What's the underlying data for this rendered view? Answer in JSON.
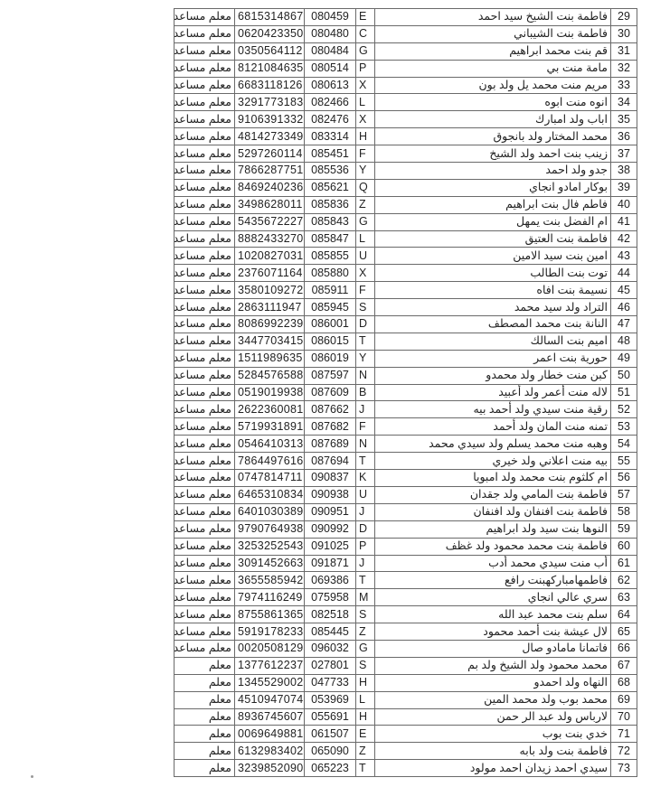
{
  "rows": [
    {
      "num": "29",
      "name": "فاطمة بنت الشيخ سيد احمد",
      "letter": "E",
      "code": "080459",
      "phone": "6815314867",
      "role": "معلم مساعد"
    },
    {
      "num": "30",
      "name": "فاطمة بنت الشيباني",
      "letter": "C",
      "code": "080480",
      "phone": "0620423350",
      "role": "معلم مساعد"
    },
    {
      "num": "31",
      "name": "قم بنت محمد ابراهيم",
      "letter": "G",
      "code": "080484",
      "phone": "0350564112",
      "role": "معلم مساعد"
    },
    {
      "num": "32",
      "name": "مامة منت بي",
      "letter": "P",
      "code": "080514",
      "phone": "8121084635",
      "role": "معلم مساعد"
    },
    {
      "num": "33",
      "name": "مريم منت محمد يل ولد بون",
      "letter": "X",
      "code": "080613",
      "phone": "6683118126",
      "role": "معلم مساعد"
    },
    {
      "num": "34",
      "name": "انوه منت ابوه",
      "letter": "L",
      "code": "082466",
      "phone": "3291773183",
      "role": "معلم مساعد"
    },
    {
      "num": "35",
      "name": "اباب ولد امبارك",
      "letter": "X",
      "code": "082476",
      "phone": "9106391332",
      "role": "معلم مساعد"
    },
    {
      "num": "36",
      "name": "محمد المختار ولد بانجوق",
      "letter": "H",
      "code": "083314",
      "phone": "4814273349",
      "role": "معلم مساعد"
    },
    {
      "num": "37",
      "name": "زينب بنت احمد ولد الشيخ",
      "letter": "F",
      "code": "085451",
      "phone": "5297260114",
      "role": "معلم مساعد"
    },
    {
      "num": "38",
      "name": "جدو ولد احمد",
      "letter": "Y",
      "code": "085536",
      "phone": "7866287751",
      "role": "معلم مساعد"
    },
    {
      "num": "39",
      "name": "بوكار امادو انجاي",
      "letter": "Q",
      "code": "085621",
      "phone": "8469240236",
      "role": "معلم مساعد"
    },
    {
      "num": "40",
      "name": "فاطم فال بنت ابراهيم",
      "letter": "Z",
      "code": "085836",
      "phone": "3498628011",
      "role": "معلم مساعد"
    },
    {
      "num": "41",
      "name": "ام الفضل بنت يمهل",
      "letter": "G",
      "code": "085843",
      "phone": "5435672227",
      "role": "معلم مساعد"
    },
    {
      "num": "42",
      "name": "فاطمة بنت العتيق",
      "letter": "L",
      "code": "085847",
      "phone": "8882433270",
      "role": "معلم مساعد"
    },
    {
      "num": "43",
      "name": "امين بنت سيد الامين",
      "letter": "U",
      "code": "085855",
      "phone": "1020827031",
      "role": "معلم مساعد"
    },
    {
      "num": "44",
      "name": "توت بنت الطالب",
      "letter": "X",
      "code": "085880",
      "phone": "2376071164",
      "role": "معلم مساعد"
    },
    {
      "num": "45",
      "name": "نسيمة بنت افاه",
      "letter": "F",
      "code": "085911",
      "phone": "3580109272",
      "role": "معلم مساعد"
    },
    {
      "num": "46",
      "name": "التراد ولد سيد محمد",
      "letter": "S",
      "code": "085945",
      "phone": "2863111947",
      "role": "معلم مساعد"
    },
    {
      "num": "47",
      "name": "النانة بنت محمد المصطف",
      "letter": "D",
      "code": "086001",
      "phone": "8086992239",
      "role": "معلم مساعد"
    },
    {
      "num": "48",
      "name": "اميم بنت السالك",
      "letter": "T",
      "code": "086015",
      "phone": "3447703415",
      "role": "معلم مساعد"
    },
    {
      "num": "49",
      "name": "حورية بنت اعمر",
      "letter": "Y",
      "code": "086019",
      "phone": "1511989635",
      "role": "معلم مساعد"
    },
    {
      "num": "50",
      "name": "كبن منت خطار ولد محمدو",
      "letter": "N",
      "code": "087597",
      "phone": "5284576588",
      "role": "معلم مساعد"
    },
    {
      "num": "51",
      "name": "لاله منت أعمر ولد أعبيد",
      "letter": "B",
      "code": "087609",
      "phone": "0519019938",
      "role": "معلم مساعد"
    },
    {
      "num": "52",
      "name": "رقية منت سيدي ولد أحمد بيه",
      "letter": "J",
      "code": "087662",
      "phone": "2622360081",
      "role": "معلم مساعد"
    },
    {
      "num": "53",
      "name": "تمنه منت المان ولد أحمد",
      "letter": "F",
      "code": "087682",
      "phone": "5719931891",
      "role": "معلم مساعد"
    },
    {
      "num": "54",
      "name": "وهبه منت محمد يسلم ولد سيدي محمد",
      "letter": "N",
      "code": "087689",
      "phone": "0546410313",
      "role": "معلم مساعد"
    },
    {
      "num": "55",
      "name": "بيه منت اعلاني ولد خيري",
      "letter": "T",
      "code": "087694",
      "phone": "7864497616",
      "role": "معلم مساعد"
    },
    {
      "num": "56",
      "name": "ام كلثوم بنت محمد ولد امبويا",
      "letter": "K",
      "code": "090837",
      "phone": "0747814711",
      "role": "معلم مساعد"
    },
    {
      "num": "57",
      "name": "فاطمة بنت المامي ولد جقدان",
      "letter": "U",
      "code": "090938",
      "phone": "6465310834",
      "role": "معلم مساعد"
    },
    {
      "num": "58",
      "name": "فاطمة بنت افنفان ولد افنفان",
      "letter": "J",
      "code": "090951",
      "phone": "6401030389",
      "role": "معلم مساعد"
    },
    {
      "num": "59",
      "name": "النوها بنت سيد ولد ابراهيم",
      "letter": "D",
      "code": "090992",
      "phone": "9790764938",
      "role": "معلم مساعد"
    },
    {
      "num": "60",
      "name": "فاطمة بنت محمد محمود ولد غظف",
      "letter": "P",
      "code": "091025",
      "phone": "3253252543",
      "role": "معلم مساعد"
    },
    {
      "num": "61",
      "name": "أب منت سيدي محمد أدب",
      "letter": "J",
      "code": "091871",
      "phone": "3091452663",
      "role": "معلم مساعد"
    },
    {
      "num": "62",
      "name": "فاطمهامباركهبنت رافع",
      "letter": "T",
      "code": "069386",
      "phone": "3655585942",
      "role": "معلم مساعد"
    },
    {
      "num": "63",
      "name": "سري عالي انجاي",
      "letter": "M",
      "code": "075958",
      "phone": "7974116249",
      "role": "معلم مساعد"
    },
    {
      "num": "64",
      "name": "سلم بنت محمد عبد الله",
      "letter": "S",
      "code": "082518",
      "phone": "8755861365",
      "role": "معلم مساعد"
    },
    {
      "num": "65",
      "name": "لال عيشة بنت أحمد محمود",
      "letter": "Z",
      "code": "085445",
      "phone": "5919178233",
      "role": "معلم مساعد"
    },
    {
      "num": "66",
      "name": "فاتمانا مامادو صال",
      "letter": "G",
      "code": "096032",
      "phone": "0020508129",
      "role": "معلم مساعد"
    },
    {
      "num": "67",
      "name": "محمد محمود ولد الشيخ ولد بم",
      "letter": "S",
      "code": "027801",
      "phone": "1377612237",
      "role": "معلم"
    },
    {
      "num": "68",
      "name": "النهاه ولد احمدو",
      "letter": "H",
      "code": "047733",
      "phone": "1345529002",
      "role": "معلم"
    },
    {
      "num": "69",
      "name": "محمد بوب ولد محمد المين",
      "letter": "L",
      "code": "053969",
      "phone": "4510947074",
      "role": "معلم"
    },
    {
      "num": "70",
      "name": "لارباس ولد عبد الر حمن",
      "letter": "H",
      "code": "055691",
      "phone": "8936745607",
      "role": "معلم"
    },
    {
      "num": "71",
      "name": "خدي بنت بوب",
      "letter": "E",
      "code": "061507",
      "phone": "0069649881",
      "role": "معلم"
    },
    {
      "num": "72",
      "name": "فاطمة بنت ولد بابه",
      "letter": "Z",
      "code": "065090",
      "phone": "6132983402",
      "role": "معلم"
    },
    {
      "num": "73",
      "name": "سيدي احمد زيدان احمد مولود",
      "letter": "T",
      "code": "065223",
      "phone": "3239852090",
      "role": "معلم"
    }
  ]
}
